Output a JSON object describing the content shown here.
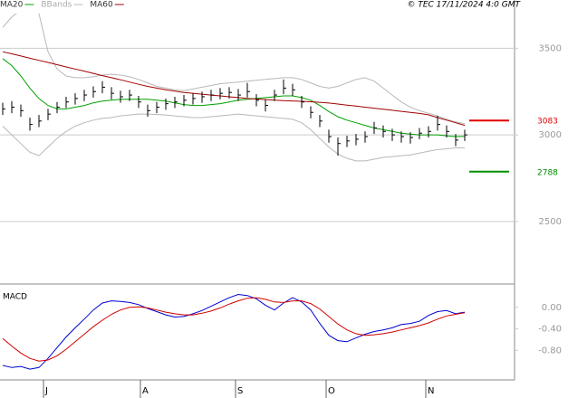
{
  "chart_data": [
    {
      "type": "ohlc",
      "x": [
        0,
        1,
        2,
        3,
        4,
        5,
        6,
        7,
        8,
        9,
        10,
        11,
        12,
        13,
        14,
        15,
        16,
        17,
        18,
        19,
        20,
        21,
        22,
        23,
        24,
        25,
        26,
        27,
        28,
        29,
        30,
        31,
        32,
        33,
        34,
        35,
        36,
        37,
        38,
        39,
        40,
        41,
        42,
        43,
        44,
        45,
        46,
        47,
        48,
        49,
        50,
        51
      ],
      "high": [
        3185,
        3195,
        3175,
        3100,
        3115,
        3150,
        3190,
        3220,
        3240,
        3260,
        3280,
        3310,
        3275,
        3255,
        3260,
        3225,
        3175,
        3190,
        3210,
        3220,
        3230,
        3240,
        3250,
        3260,
        3270,
        3275,
        3265,
        3300,
        3235,
        3205,
        3260,
        3320,
        3295,
        3225,
        3165,
        3115,
        3030,
        2985,
        2995,
        3005,
        3020,
        3075,
        3055,
        3035,
        3020,
        3015,
        3040,
        3050,
        3110,
        3055,
        3005,
        3030
      ],
      "low": [
        3115,
        3125,
        3105,
        3025,
        3045,
        3085,
        3125,
        3155,
        3175,
        3195,
        3215,
        3240,
        3205,
        3185,
        3195,
        3155,
        3105,
        3125,
        3145,
        3155,
        3165,
        3175,
        3185,
        3195,
        3205,
        3210,
        3195,
        3215,
        3165,
        3135,
        3195,
        3235,
        3225,
        3155,
        3095,
        3045,
        2955,
        2880,
        2930,
        2940,
        2955,
        3005,
        2985,
        2965,
        2955,
        2950,
        2975,
        2985,
        3025,
        2985,
        2935,
        2965
      ],
      "close": [
        3150,
        3160,
        3140,
        3060,
        3080,
        3120,
        3160,
        3190,
        3210,
        3230,
        3250,
        3275,
        3240,
        3220,
        3230,
        3190,
        3140,
        3160,
        3180,
        3190,
        3200,
        3210,
        3220,
        3230,
        3240,
        3245,
        3230,
        3250,
        3200,
        3170,
        3230,
        3270,
        3260,
        3190,
        3130,
        3080,
        2990,
        2950,
        2965,
        2975,
        2990,
        3040,
        3020,
        3000,
        2990,
        2985,
        3010,
        3020,
        3060,
        3020,
        2970,
        3000
      ],
      "bar_color": "#000000",
      "series": [
        {
          "name": "MA20",
          "color": "#00a000",
          "values": [
            3440,
            3400,
            3340,
            3270,
            3210,
            3170,
            3150,
            3150,
            3160,
            3170,
            3185,
            3195,
            3200,
            3205,
            3205,
            3205,
            3205,
            3200,
            3195,
            3185,
            3175,
            3170,
            3170,
            3175,
            3180,
            3190,
            3200,
            3205,
            3210,
            3215,
            3220,
            3225,
            3225,
            3215,
            3200,
            3170,
            3135,
            3105,
            3085,
            3070,
            3055,
            3040,
            3030,
            3020,
            3010,
            3005,
            3000,
            3000,
            3000,
            2995,
            2990,
            2992
          ]
        },
        {
          "name": "BBands",
          "color": "#b8b8b8",
          "values": [
            3620,
            3680,
            3720,
            3740,
            3700,
            3480,
            3380,
            3340,
            3330,
            3330,
            3335,
            3345,
            3350,
            3345,
            3335,
            3320,
            3300,
            3280,
            3270,
            3260,
            3255,
            3265,
            3275,
            3285,
            3295,
            3300,
            3305,
            3310,
            3315,
            3320,
            3325,
            3330,
            3330,
            3320,
            3300,
            3280,
            3270,
            3280,
            3300,
            3320,
            3330,
            3310,
            3270,
            3230,
            3190,
            3160,
            3140,
            3125,
            3110,
            3090,
            3075,
            3065
          ],
          "lower": [
            3050,
            3000,
            2950,
            2900,
            2880,
            2930,
            2980,
            3020,
            3050,
            3070,
            3085,
            3095,
            3100,
            3110,
            3115,
            3120,
            3120,
            3118,
            3115,
            3110,
            3105,
            3100,
            3100,
            3105,
            3110,
            3115,
            3120,
            3115,
            3110,
            3105,
            3100,
            3095,
            3090,
            3070,
            3030,
            2980,
            2930,
            2890,
            2865,
            2850,
            2850,
            2860,
            2870,
            2875,
            2880,
            2885,
            2895,
            2905,
            2915,
            2920,
            2925,
            2925
          ]
        },
        {
          "name": "MA60",
          "color": "#a00000",
          "values": [
            3480,
            3468,
            3455,
            3442,
            3430,
            3418,
            3405,
            3392,
            3380,
            3368,
            3355,
            3342,
            3330,
            3318,
            3305,
            3292,
            3280,
            3270,
            3260,
            3252,
            3245,
            3240,
            3235,
            3230,
            3225,
            3220,
            3215,
            3210,
            3207,
            3204,
            3200,
            3198,
            3196,
            3194,
            3191,
            3188,
            3184,
            3178,
            3172,
            3166,
            3160,
            3154,
            3148,
            3142,
            3136,
            3130,
            3124,
            3116,
            3100,
            3085,
            3070,
            3055
          ]
        }
      ],
      "levels": [
        {
          "value": 3083,
          "color": "#e00000"
        },
        {
          "value": 2788,
          "color": "#009000"
        }
      ],
      "xlim": [
        -0.3,
        56.5
      ],
      "ylim": [
        2150,
        3700
      ],
      "yticks": [
        2500,
        3000,
        3500
      ],
      "grid": true,
      "copyright": "© TEC 17/11/2024 4:0 GMT"
    },
    {
      "type": "line",
      "title": "MACD",
      "x": [
        0,
        1,
        2,
        3,
        4,
        5,
        6,
        7,
        8,
        9,
        10,
        11,
        12,
        13,
        14,
        15,
        16,
        17,
        18,
        19,
        20,
        21,
        22,
        23,
        24,
        25,
        26,
        27,
        28,
        29,
        30,
        31,
        32,
        33,
        34,
        35,
        36,
        37,
        38,
        39,
        40,
        41,
        42,
        43,
        44,
        45,
        46,
        47,
        48,
        49,
        50,
        51
      ],
      "series": [
        {
          "color": "#0000d0",
          "values": [
            -1.08,
            -1.12,
            -1.1,
            -1.15,
            -1.12,
            -0.95,
            -0.75,
            -0.55,
            -0.38,
            -0.22,
            -0.05,
            0.08,
            0.12,
            0.11,
            0.09,
            0.05,
            -0.02,
            -0.08,
            -0.14,
            -0.18,
            -0.17,
            -0.12,
            -0.06,
            0.02,
            0.1,
            0.18,
            0.24,
            0.22,
            0.16,
            0.04,
            -0.05,
            0.08,
            0.18,
            0.1,
            -0.05,
            -0.3,
            -0.52,
            -0.62,
            -0.64,
            -0.57,
            -0.5,
            -0.45,
            -0.42,
            -0.38,
            -0.32,
            -0.3,
            -0.26,
            -0.15,
            -0.08,
            -0.06,
            -0.12,
            -0.09
          ]
        },
        {
          "color": "#d00000",
          "values": [
            -0.58,
            -0.72,
            -0.85,
            -0.95,
            -1.0,
            -0.98,
            -0.9,
            -0.78,
            -0.64,
            -0.5,
            -0.36,
            -0.24,
            -0.13,
            -0.05,
            0.0,
            0.01,
            -0.01,
            -0.05,
            -0.09,
            -0.12,
            -0.14,
            -0.14,
            -0.11,
            -0.07,
            -0.01,
            0.06,
            0.12,
            0.17,
            0.18,
            0.15,
            0.1,
            0.09,
            0.12,
            0.12,
            0.07,
            -0.03,
            -0.17,
            -0.31,
            -0.42,
            -0.49,
            -0.52,
            -0.51,
            -0.49,
            -0.46,
            -0.42,
            -0.38,
            -0.34,
            -0.29,
            -0.22,
            -0.16,
            -0.13,
            -0.1
          ]
        }
      ],
      "xlim": [
        -0.3,
        56.5
      ],
      "ylim": [
        -1.35,
        0.4
      ],
      "yticks": [
        {
          "value": 0,
          "label": "0.00"
        },
        {
          "value": -0.4,
          "label": "-0.40"
        },
        {
          "value": -0.8,
          "label": "-0.80"
        }
      ],
      "xticks": [
        {
          "value": 4.5,
          "label": "J"
        },
        {
          "value": 15.2,
          "label": "A"
        },
        {
          "value": 25.7,
          "label": "S"
        },
        {
          "value": 35.7,
          "label": "O"
        },
        {
          "value": 46.7,
          "label": "N"
        }
      ]
    }
  ]
}
